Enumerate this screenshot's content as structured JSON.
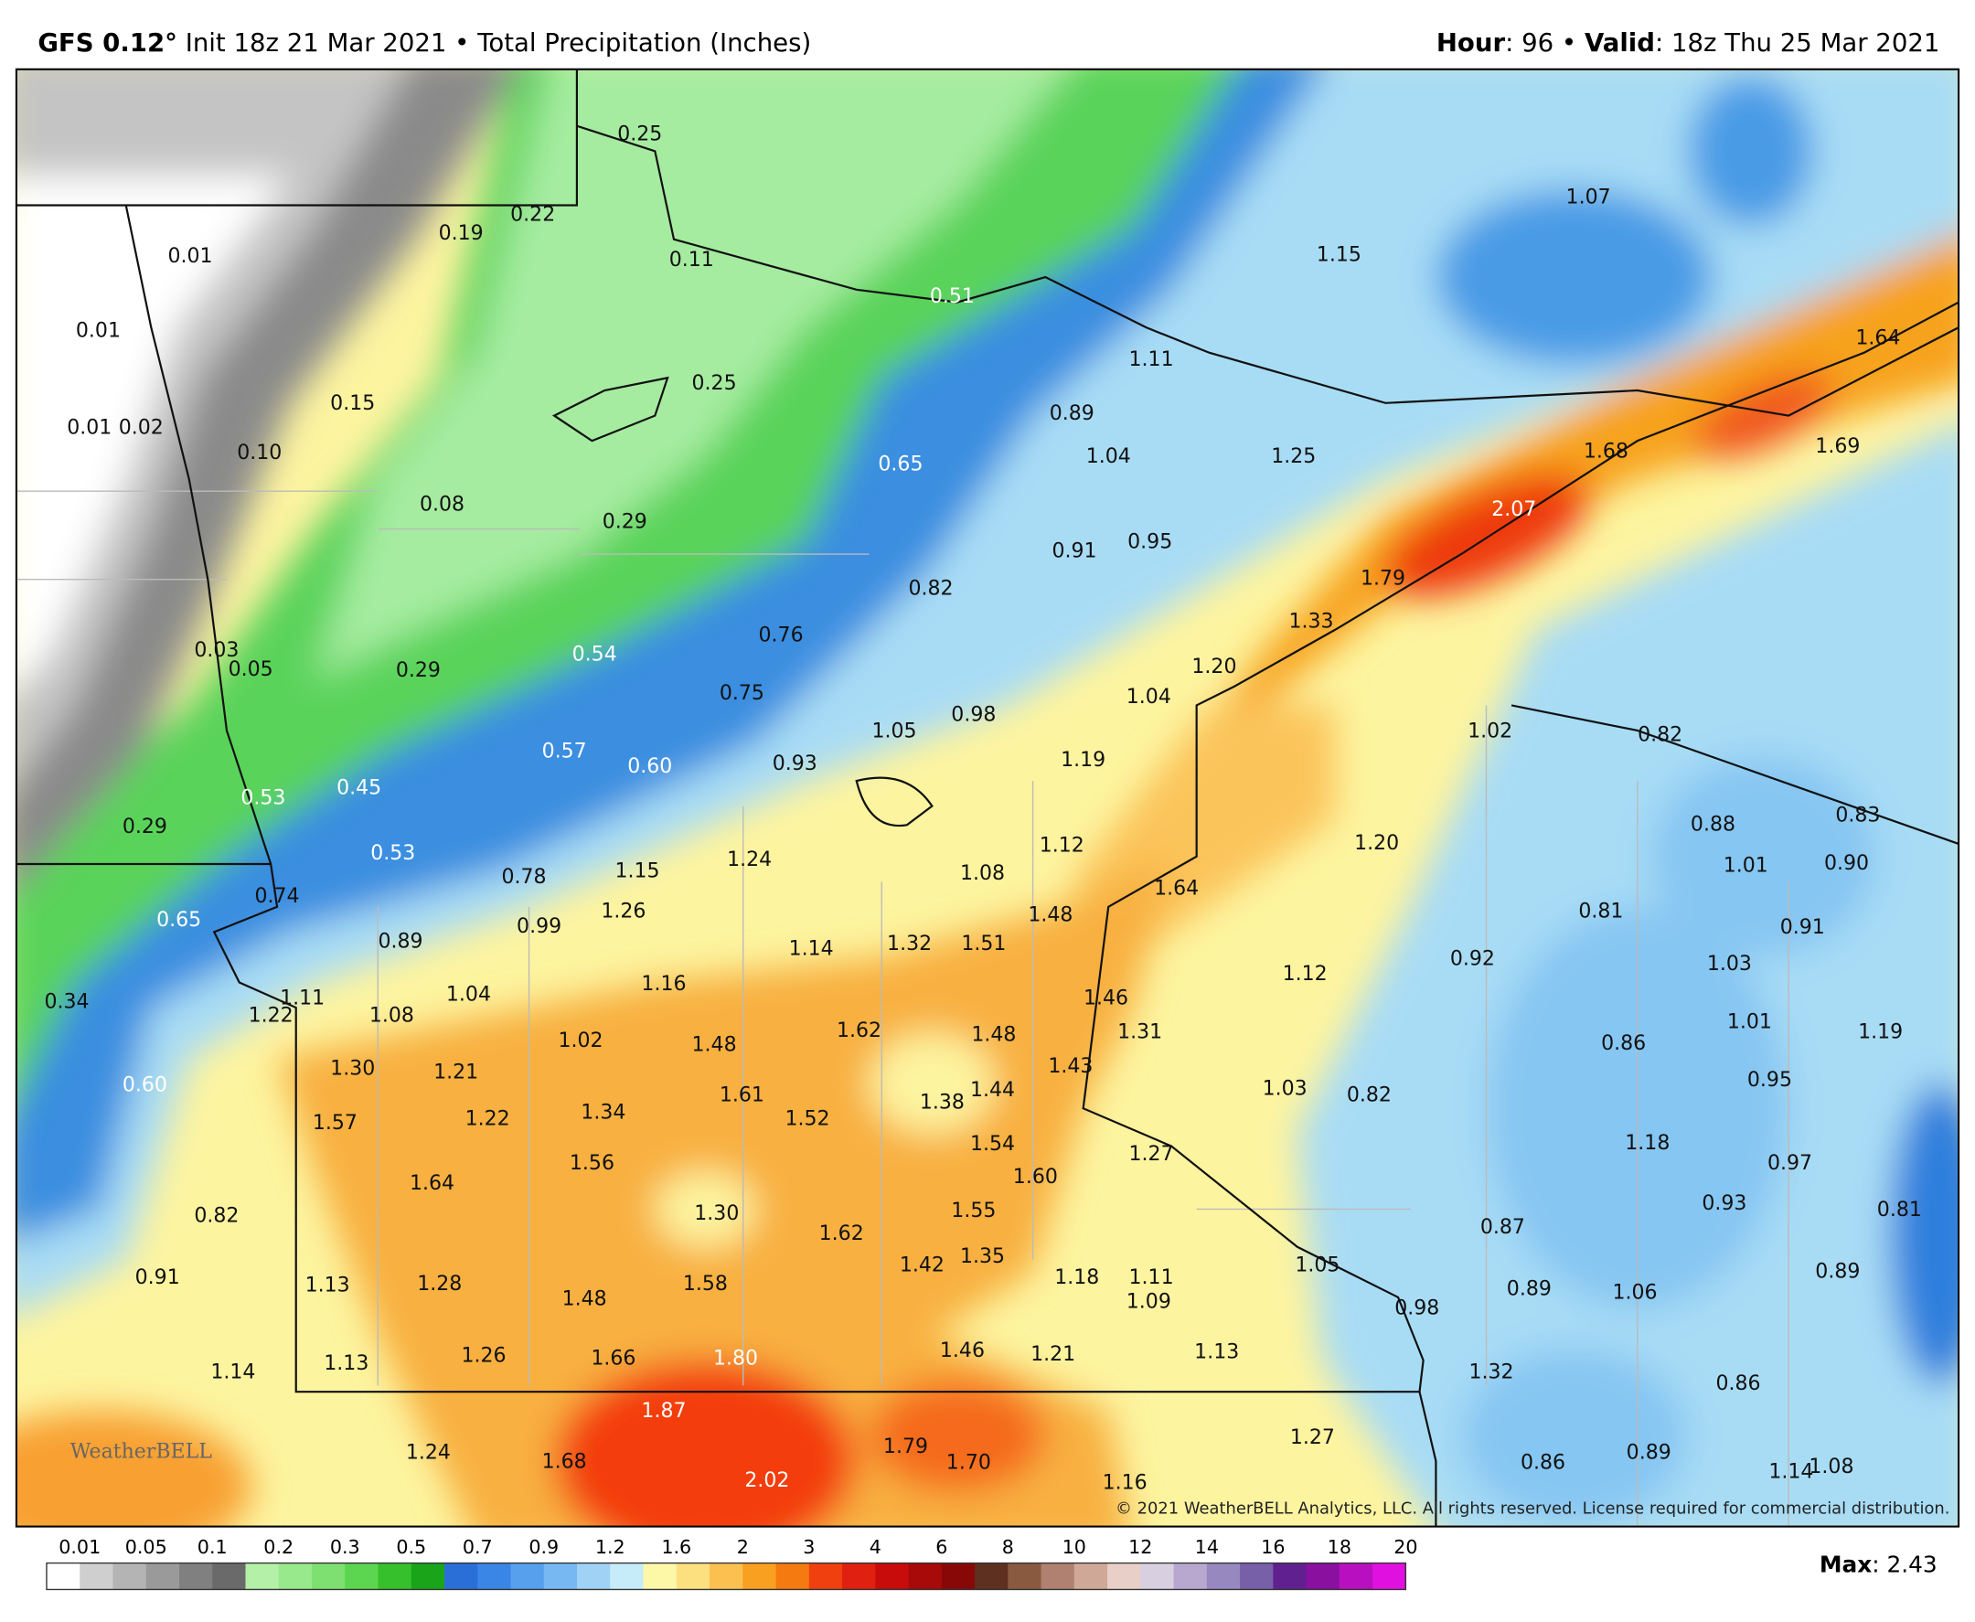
{
  "header": {
    "model": "GFS 0.12°",
    "init": "Init 18z 21 Mar 2021",
    "separator": "•",
    "product": "Total Precipitation (Inches)",
    "hour_key": "Hour",
    "hour": ": 96",
    "separator2": "•",
    "valid_key": "Valid",
    "valid": ": 18z Thu 25 Mar 2021"
  },
  "map": {
    "point_labels": [
      "0.25",
      "0.22",
      "0.19",
      "0.01",
      "0.11",
      "0.51",
      "0.01",
      "0.15",
      "0.25",
      "0.01",
      "0.02",
      "0.10",
      "0.08",
      "0.29",
      "0.65",
      "0.89",
      "1.11",
      "1.04",
      "1.25",
      "1.68",
      "1.64",
      "1.69",
      "1.07",
      "1.15",
      "2.07",
      "0.91",
      "0.95",
      "0.82",
      "1.79",
      "1.33",
      "0.76",
      "0.03",
      "0.05",
      "0.29",
      "0.54",
      "1.20",
      "1.04",
      "0.75",
      "1.05",
      "0.98",
      "1.02",
      "0.82",
      "0.93",
      "1.19",
      "0.57",
      "0.60",
      "0.53",
      "0.45",
      "0.29",
      "0.88",
      "0.83",
      "1.12",
      "1.20",
      "1.01",
      "0.90",
      "0.53",
      "1.24",
      "1.15",
      "1.08",
      "0.78",
      "0.74",
      "1.64",
      "0.81",
      "0.65",
      "1.26",
      "0.99",
      "1.48",
      "0.91",
      "0.89",
      "1.14",
      "1.32",
      "1.51",
      "0.92",
      "1.03",
      "1.12",
      "0.34",
      "1.11",
      "1.04",
      "1.16",
      "1.46",
      "1.22",
      "1.08",
      "1.62",
      "1.48",
      "1.31",
      "1.01",
      "1.19",
      "1.02",
      "1.48",
      "0.86",
      "1.30",
      "1.21",
      "1.43",
      "0.95",
      "0.60",
      "1.61",
      "1.44",
      "1.03",
      "0.82",
      "1.22",
      "1.34",
      "1.52",
      "1.38",
      "1.57",
      "1.54",
      "1.18",
      "1.27",
      "1.56",
      "0.97",
      "1.60",
      "1.64",
      "1.30",
      "0.93",
      "1.55",
      "0.82",
      "0.81",
      "0.87",
      "1.62",
      "1.35",
      "1.42",
      "1.05",
      "0.91",
      "1.13",
      "1.28",
      "1.58",
      "1.18",
      "1.11",
      "0.89",
      "0.89",
      "1.06",
      "1.48",
      "1.09",
      "0.98",
      "1.46",
      "1.21",
      "1.13",
      "1.26",
      "1.66",
      "1.80",
      "1.14",
      "1.13",
      "1.32",
      "0.86",
      "1.87",
      "1.27",
      "1.24",
      "1.79",
      "1.68",
      "1.70",
      "0.89",
      "0.86",
      "2.02",
      "1.16",
      "1.14",
      "1.08"
    ],
    "copyright": "© 2021 WeatherBELL Analytics, LLC. All rights reserved. License required for commercial distribution.",
    "logo": "WeatherBELL"
  },
  "legend": {
    "labels": [
      "0.01",
      "0.05",
      "0.1",
      "0.2",
      "0.3",
      "0.5",
      "0.7",
      "0.9",
      "1.2",
      "1.6",
      "2",
      "3",
      "4",
      "6",
      "8",
      "10",
      "12",
      "14",
      "16",
      "18",
      "20"
    ],
    "max_key": "Max",
    "max": ": 2.43"
  }
}
